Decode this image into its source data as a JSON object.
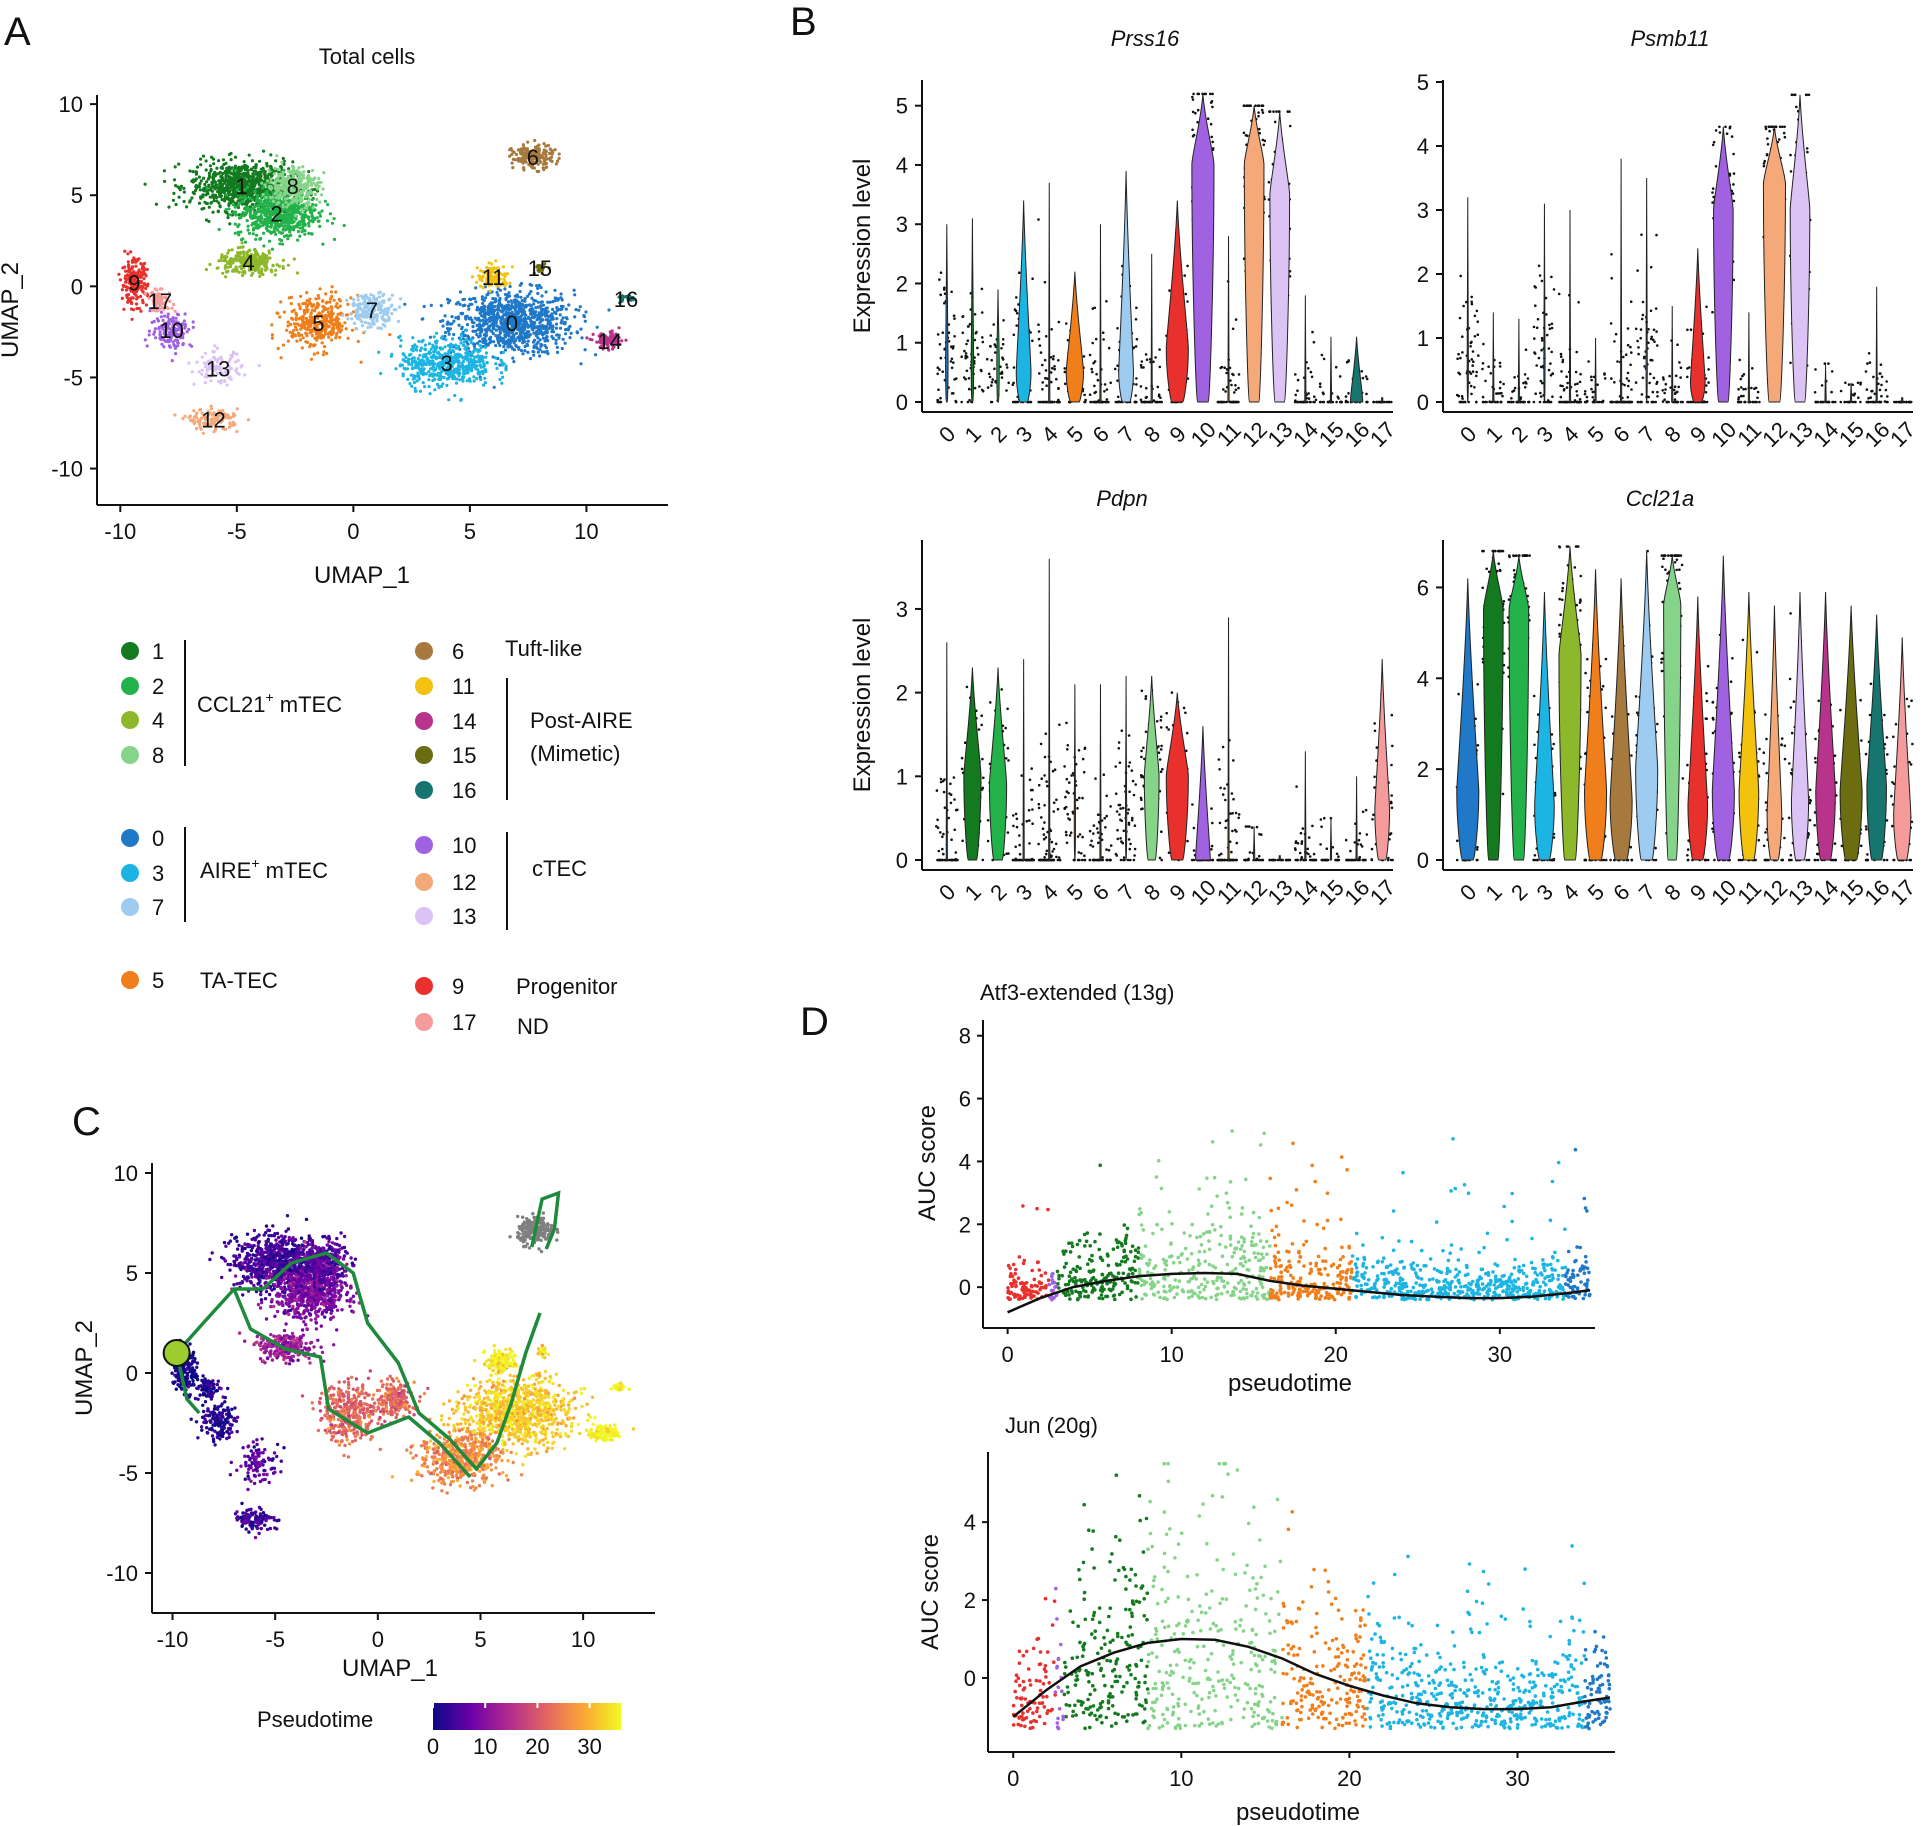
{
  "panels": {
    "A": "A",
    "B": "B",
    "C": "C",
    "D": "D"
  },
  "colors": {
    "c0": "#1f78c8",
    "c1": "#137a1f",
    "c2": "#23b14a",
    "c3": "#1cb5e3",
    "c4": "#8db82b",
    "c5": "#f07e1a",
    "c6": "#a67a3f",
    "c7": "#9ecbf0",
    "c8": "#86d48a",
    "c9": "#e8302c",
    "c10": "#a062e0",
    "c11": "#f2c20f",
    "c12": "#f5a878",
    "c13": "#dcc3f5",
    "c14": "#b8348c",
    "c15": "#6b6d10",
    "c16": "#16756e",
    "c17": "#f59b9b",
    "trajectory": "#1e8a3c",
    "root": "#9ccc2e"
  },
  "chart_data": [
    {
      "id": "A",
      "type": "scatter",
      "title": "Total cells",
      "xlabel": "UMAP_1",
      "ylabel": "UMAP_2",
      "xlim": [
        -11,
        13.5
      ],
      "ylim": [
        -12,
        10.5
      ],
      "xticks": [
        "-10",
        "-5",
        "0",
        "5",
        "10"
      ],
      "xtick_values": [
        -10,
        -5,
        0,
        5,
        10
      ],
      "yticks": [
        "10",
        "5",
        "0",
        "-5",
        "-10"
      ],
      "ytick_values": [
        10,
        5,
        0,
        -5,
        -10
      ],
      "clusters": [
        {
          "label": "0",
          "color": "c0",
          "cx": 6.8,
          "cy": -2.0,
          "sx": 2.4,
          "sy": 1.6,
          "n": 900
        },
        {
          "label": "1",
          "color": "c1",
          "cx": -4.8,
          "cy": 5.5,
          "sx": 2.0,
          "sy": 1.2,
          "n": 800
        },
        {
          "label": "2",
          "color": "c2",
          "cx": -3.3,
          "cy": 4.0,
          "sx": 1.6,
          "sy": 1.2,
          "n": 600
        },
        {
          "label": "3",
          "color": "c3",
          "cx": 4.0,
          "cy": -4.2,
          "sx": 1.8,
          "sy": 1.2,
          "n": 500
        },
        {
          "label": "4",
          "color": "c4",
          "cx": -4.5,
          "cy": 1.3,
          "sx": 1.2,
          "sy": 0.6,
          "n": 250
        },
        {
          "label": "5",
          "color": "c5",
          "cx": -1.5,
          "cy": -2.0,
          "sx": 1.3,
          "sy": 1.3,
          "n": 350
        },
        {
          "label": "6",
          "color": "c6",
          "cx": 7.7,
          "cy": 7.1,
          "sx": 0.8,
          "sy": 0.6,
          "n": 180
        },
        {
          "label": "7",
          "color": "c7",
          "cx": 0.8,
          "cy": -1.3,
          "sx": 0.9,
          "sy": 0.8,
          "n": 200
        },
        {
          "label": "8",
          "color": "c8",
          "cx": -2.6,
          "cy": 5.5,
          "sx": 1.0,
          "sy": 1.0,
          "n": 300
        },
        {
          "label": "9",
          "color": "c9",
          "cx": -9.4,
          "cy": 0.2,
          "sx": 0.5,
          "sy": 1.1,
          "n": 200
        },
        {
          "label": "10",
          "color": "c10",
          "cx": -7.8,
          "cy": -2.4,
          "sx": 0.8,
          "sy": 0.9,
          "n": 150
        },
        {
          "label": "11",
          "color": "c11",
          "cx": 6.0,
          "cy": 0.5,
          "sx": 0.6,
          "sy": 0.6,
          "n": 120
        },
        {
          "label": "12",
          "color": "c12",
          "cx": -6.0,
          "cy": -7.3,
          "sx": 1.0,
          "sy": 0.5,
          "n": 120
        },
        {
          "label": "13",
          "color": "c13",
          "cx": -5.8,
          "cy": -4.5,
          "sx": 0.9,
          "sy": 0.8,
          "n": 100
        },
        {
          "label": "14",
          "color": "c14",
          "cx": 11.0,
          "cy": -3.0,
          "sx": 0.6,
          "sy": 0.4,
          "n": 100
        },
        {
          "label": "15",
          "color": "c15",
          "cx": 8.0,
          "cy": 1.0,
          "sx": 0.2,
          "sy": 0.3,
          "n": 30
        },
        {
          "label": "16",
          "color": "c16",
          "cx": 11.7,
          "cy": -0.7,
          "sx": 0.3,
          "sy": 0.2,
          "n": 30
        },
        {
          "label": "17",
          "color": "c17",
          "cx": -8.3,
          "cy": -0.8,
          "sx": 0.5,
          "sy": 0.5,
          "n": 80
        }
      ]
    },
    {
      "id": "B",
      "type": "violin",
      "ylabel": "Expression level",
      "categories": [
        "0",
        "1",
        "2",
        "3",
        "4",
        "5",
        "6",
        "7",
        "8",
        "9",
        "10",
        "11",
        "12",
        "13",
        "14",
        "15",
        "16",
        "17"
      ],
      "cluster_colors": [
        "c0",
        "c1",
        "c2",
        "c3",
        "c4",
        "c5",
        "c6",
        "c7",
        "c8",
        "c9",
        "c10",
        "c11",
        "c12",
        "c13",
        "c14",
        "c15",
        "c16",
        "c17"
      ],
      "genes": [
        {
          "name": "Prss16",
          "ylim": [
            0,
            5.4
          ],
          "yticks": [
            0,
            1,
            2,
            3,
            4,
            5
          ],
          "max": [
            3.0,
            3.1,
            1.9,
            3.4,
            3.7,
            2.2,
            3.0,
            3.9,
            2.5,
            3.4,
            5.2,
            2.8,
            5.0,
            4.9,
            1.8,
            1.1,
            1.1,
            0.0
          ],
          "median": [
            0.7,
            0.7,
            0.7,
            0.5,
            0.0,
            0.5,
            0.0,
            0.5,
            0.0,
            0.9,
            4.0,
            0.0,
            4.0,
            3.5,
            0.0,
            0.0,
            0.0,
            0.0
          ],
          "width": [
            0.1,
            0.1,
            0.1,
            0.6,
            0.05,
            0.7,
            0.05,
            0.6,
            0.05,
            0.9,
            0.9,
            0.05,
            0.8,
            0.8,
            0.05,
            0.05,
            0.5,
            0.05
          ]
        },
        {
          "name": "Psmb11",
          "ylim": [
            0,
            5.0
          ],
          "yticks": [
            0,
            1,
            2,
            3,
            4,
            5
          ],
          "max": [
            3.2,
            1.4,
            1.3,
            3.1,
            3.0,
            1.0,
            3.8,
            3.5,
            1.5,
            2.4,
            4.3,
            1.4,
            4.3,
            4.8,
            0.6,
            0.3,
            1.8,
            0.0
          ],
          "median": [
            0.6,
            0.0,
            0.0,
            0.6,
            0.0,
            0.0,
            0.0,
            0.6,
            0.0,
            0.3,
            3.0,
            0.0,
            3.4,
            3.0,
            0.0,
            0.0,
            0.0,
            0.0
          ],
          "width": [
            0.05,
            0.05,
            0.05,
            0.05,
            0.05,
            0.05,
            0.05,
            0.05,
            0.05,
            0.6,
            0.8,
            0.05,
            0.9,
            0.8,
            0.05,
            0.05,
            0.05,
            0.05
          ]
        },
        {
          "name": "Pdpn",
          "ylim": [
            0,
            3.8
          ],
          "yticks": [
            0,
            1,
            2,
            3
          ],
          "max": [
            2.6,
            2.3,
            2.3,
            2.4,
            3.6,
            2.1,
            2.1,
            2.2,
            2.2,
            2.0,
            1.6,
            2.9,
            0.4,
            0.0,
            1.3,
            0.5,
            1.0,
            2.4
          ],
          "median": [
            0.0,
            1.0,
            0.9,
            0.0,
            0.0,
            0.5,
            0.0,
            0.5,
            1.0,
            1.0,
            0.0,
            0.0,
            0.0,
            0.0,
            0.0,
            0.0,
            0.0,
            0.6
          ],
          "width": [
            0.05,
            0.7,
            0.7,
            0.05,
            0.05,
            0.05,
            0.05,
            0.05,
            0.6,
            0.9,
            0.6,
            0.05,
            0.05,
            0.05,
            0.05,
            0.05,
            0.05,
            0.6
          ]
        },
        {
          "name": "Ccl21a",
          "ylim": [
            0,
            7.0
          ],
          "yticks": [
            0,
            2,
            4,
            6
          ],
          "max": [
            6.2,
            6.8,
            6.7,
            5.9,
            6.9,
            6.4,
            6.2,
            6.8,
            6.7,
            5.8,
            6.7,
            5.9,
            5.6,
            5.9,
            5.9,
            5.6,
            5.4,
            4.9
          ],
          "median": [
            1.5,
            5.5,
            5.5,
            1.2,
            4.5,
            1.5,
            1.3,
            2.0,
            5.6,
            1.2,
            1.5,
            1.5,
            1.0,
            1.3,
            1.5,
            1.5,
            1.6,
            1.0
          ],
          "width": [
            0.9,
            0.8,
            0.8,
            0.8,
            0.9,
            0.9,
            0.9,
            0.9,
            0.7,
            0.8,
            0.9,
            0.8,
            0.6,
            0.7,
            0.8,
            0.9,
            0.8,
            0.7
          ]
        }
      ]
    },
    {
      "id": "C",
      "type": "scatter-trajectory",
      "xlabel": "UMAP_1",
      "ylabel": "UMAP_2",
      "xlim": [
        -11,
        13.5
      ],
      "ylim": [
        -12,
        10.5
      ],
      "xticks": [
        "-10",
        "-5",
        "0",
        "5",
        "10"
      ],
      "xtick_values": [
        -10,
        -5,
        0,
        5,
        10
      ],
      "yticks": [
        "10",
        "5",
        "0",
        "-5",
        "-10"
      ],
      "ytick_values": [
        10,
        5,
        0,
        -5,
        -10
      ],
      "colorbar": {
        "title": "Pseudotime",
        "ticks": [
          "0",
          "10",
          "20",
          "30"
        ],
        "tick_values": [
          0,
          10,
          20,
          30
        ],
        "range": [
          0,
          36
        ],
        "colors": [
          "#0d0887",
          "#6a00a8",
          "#b12a90",
          "#e16462",
          "#fca636",
          "#f0f921"
        ]
      },
      "trajectory": [
        [
          -9.8,
          1.0
        ],
        [
          -8.5,
          2.5
        ],
        [
          -7,
          4.2
        ],
        [
          -5.6,
          4.2
        ],
        [
          -4.2,
          5.5
        ],
        [
          -2.5,
          6.0
        ],
        [
          -1.2,
          5.0
        ],
        [
          -0.5,
          2.5
        ],
        [
          1.0,
          0.5
        ],
        [
          2.0,
          -2.0
        ],
        [
          3.5,
          -3.3
        ],
        [
          4.8,
          -4.8
        ],
        [
          5.8,
          -3.5
        ],
        [
          6.5,
          -1.5
        ],
        [
          7.2,
          1.0
        ],
        [
          7.9,
          3.0
        ]
      ],
      "trajectory_branch": [
        [
          -7,
          4.2
        ],
        [
          -6.2,
          2.2
        ],
        [
          -4.5,
          1.2
        ],
        [
          -2.8,
          0.8
        ],
        [
          -2.4,
          -1.8
        ],
        [
          -0.5,
          -3.0
        ],
        [
          1.5,
          -2.2
        ],
        [
          3.0,
          -3.5
        ],
        [
          4.5,
          -5.2
        ]
      ],
      "tuft_loop": [
        [
          7.5,
          6.3
        ],
        [
          8.0,
          8.7
        ],
        [
          8.8,
          9.0
        ],
        [
          8.6,
          7.2
        ],
        [
          8.2,
          6.2
        ]
      ],
      "root": [
        -9.8,
        1.0
      ]
    },
    {
      "id": "D1",
      "type": "scatter-smooth",
      "title": "Atf3-extended (13g)",
      "xlabel": "pseudotime",
      "ylabel": "AUC score",
      "xlim": [
        -1.5,
        35.8
      ],
      "ylim": [
        -1.3,
        8.5
      ],
      "xticks": [
        "0",
        "10",
        "20",
        "30"
      ],
      "xtick_values": [
        0,
        10,
        20,
        30
      ],
      "yticks": [
        "0",
        "2",
        "4",
        "6",
        "8"
      ],
      "ytick_values": [
        0,
        2,
        4,
        6,
        8
      ],
      "smooth_x": [
        0,
        2,
        4,
        6,
        8,
        10,
        12,
        14,
        16,
        18,
        20,
        22,
        24,
        26,
        28,
        30,
        32,
        34,
        35.5
      ],
      "smooth_y": [
        -0.8,
        -0.35,
        0.0,
        0.2,
        0.35,
        0.42,
        0.45,
        0.42,
        0.2,
        0.05,
        -0.05,
        -0.15,
        -0.25,
        -0.3,
        -0.35,
        -0.35,
        -0.3,
        -0.2,
        -0.1
      ],
      "baseline": -0.4
    },
    {
      "id": "D2",
      "type": "scatter-smooth",
      "title": "Jun (20g)",
      "xlabel": "pseudotime",
      "ylabel": "AUC score",
      "xlim": [
        -1.5,
        35.8
      ],
      "ylim": [
        -1.9,
        5.8
      ],
      "xticks": [
        "0",
        "10",
        "20",
        "30"
      ],
      "xtick_values": [
        0,
        10,
        20,
        30
      ],
      "yticks": [
        "0",
        "2",
        "4"
      ],
      "ytick_values": [
        0,
        2,
        4
      ],
      "smooth_x": [
        0,
        2,
        4,
        6,
        8,
        10,
        12,
        14,
        16,
        18,
        20,
        22,
        24,
        26,
        28,
        30,
        32,
        34,
        35.5
      ],
      "smooth_y": [
        -1.0,
        -0.3,
        0.3,
        0.65,
        0.9,
        1.0,
        0.98,
        0.8,
        0.5,
        0.1,
        -0.2,
        -0.45,
        -0.65,
        -0.75,
        -0.8,
        -0.8,
        -0.75,
        -0.6,
        -0.5
      ],
      "baseline": -1.3
    }
  ],
  "legend": {
    "groups": [
      {
        "items": [
          "1",
          "2",
          "4",
          "8"
        ],
        "colors": [
          "c1",
          "c2",
          "c4",
          "c8"
        ],
        "label_main": "CCL21",
        "label_sup": "+",
        "label_rest": " mTEC"
      },
      {
        "items": [
          "0",
          "3",
          "7"
        ],
        "colors": [
          "c0",
          "c3",
          "c7"
        ],
        "label_main": "AIRE",
        "label_sup": "+",
        "label_rest": " mTEC"
      },
      {
        "items": [
          "5"
        ],
        "colors": [
          "c5"
        ],
        "label_main": "TA-TEC",
        "label_sup": "",
        "label_rest": ""
      },
      {
        "items": [
          "6"
        ],
        "colors": [
          "c6"
        ],
        "label_main": "Tuft-like",
        "label_sup": "",
        "label_rest": ""
      },
      {
        "items": [
          "11",
          "14",
          "15",
          "16"
        ],
        "colors": [
          "c11",
          "c14",
          "c15",
          "c16"
        ],
        "label_line1": "Post-AIRE",
        "label_line2": "(Mimetic)"
      },
      {
        "items": [
          "10",
          "12",
          "13"
        ],
        "colors": [
          "c10",
          "c12",
          "c13"
        ],
        "label_main": "cTEC",
        "label_sup": "",
        "label_rest": ""
      },
      {
        "items": [
          "9"
        ],
        "colors": [
          "c9"
        ],
        "label_main": "Progenitor",
        "label_sup": "",
        "label_rest": ""
      },
      {
        "items": [
          "17"
        ],
        "colors": [
          "c17"
        ],
        "label_main": "ND",
        "label_sup": "",
        "label_rest": ""
      }
    ]
  }
}
